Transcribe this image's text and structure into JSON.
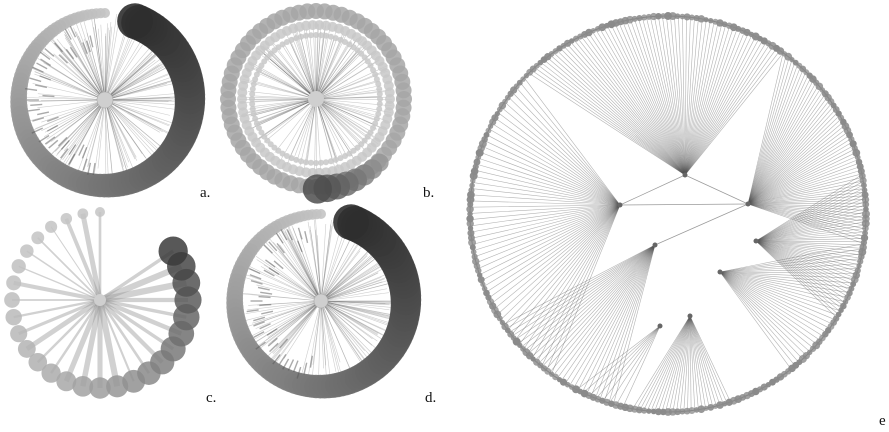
{
  "figure": {
    "panels": [
      {
        "id": "a",
        "label": "a.",
        "style": "spiral-ring"
      },
      {
        "id": "b",
        "label": "b.",
        "style": "dotted-rings"
      },
      {
        "id": "c",
        "label": "c.",
        "style": "sparse-nodes"
      },
      {
        "id": "d",
        "label": "d.",
        "style": "spiral-ring"
      },
      {
        "id": "e",
        "label": "e",
        "style": "hierarchical-tree"
      }
    ]
  },
  "colors": {
    "edge": "#6f6f6f",
    "ring_light": "#b9b9b9",
    "ring_dark": "#333333",
    "node": "#8a8a8a",
    "hub": "#cfcfcf"
  }
}
